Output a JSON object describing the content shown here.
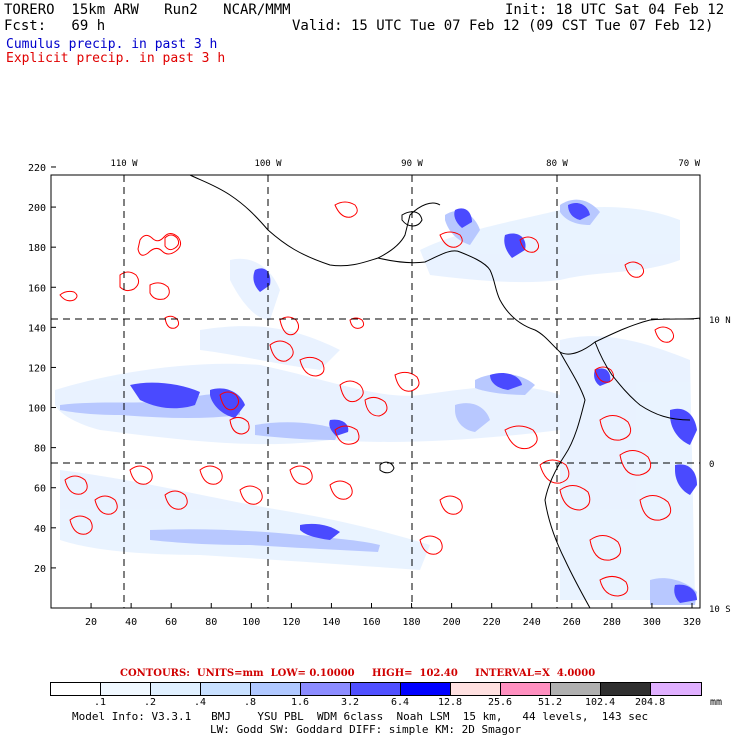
{
  "header": {
    "model": "TORERO  15km ARW   Run2   NCAR/MMM",
    "init": "Init: 18 UTC Sat 04 Feb 12",
    "fcst": "Fcst:   69 h",
    "valid": "Valid: 15 UTC Tue 07 Feb 12 (09 CST Tue 07 Feb 12)",
    "cumulus": "Cumulus precip. in past 3 h",
    "explicit": "Explicit precip. in past 3 h"
  },
  "map": {
    "lon_labels": [
      "110 W",
      "100 W",
      "90 W",
      "80 W",
      "70 W"
    ],
    "lat_labels": [
      "10 N",
      "0",
      "10 S"
    ],
    "x_ticks": [
      "20",
      "40",
      "60",
      "80",
      "100",
      "120",
      "140",
      "160",
      "180",
      "200",
      "220",
      "240",
      "260",
      "280",
      "300",
      "320"
    ],
    "y_ticks": [
      "220",
      "200",
      "180",
      "160",
      "140",
      "120",
      "100",
      "80",
      "60",
      "40",
      "20"
    ],
    "land_color": "#000000",
    "cumulus_color": "#3c3cff",
    "explicit_color": "#ff0000"
  },
  "contour_info": {
    "label": "CONTOURS:  UNITS=mm  LOW= 0.10000     HIGH=  102.40     INTERVAL=X  4.0000"
  },
  "colorbar": {
    "colors": [
      "#ffffff",
      "#f0f8ff",
      "#e0f0ff",
      "#c8e0ff",
      "#b0c8ff",
      "#8c8cff",
      "#5050ff",
      "#0000ff",
      "#ffe0e0",
      "#ff90c0",
      "#b0b0b0",
      "#303030",
      "#e0b0ff"
    ],
    "labels": [
      ".1",
      ".2",
      ".4",
      ".8",
      "1.6",
      "3.2",
      "6.4",
      "12.8",
      "25.6",
      "51.2",
      "102.4",
      "204.8"
    ],
    "unit": "mm"
  },
  "footer": {
    "line1": "Model Info: V3.3.1   BMJ    YSU PBL  WDM 6class  Noah LSM  15 km,   44 levels,  143 sec",
    "line2": "LW: Godd SW: Goddard DIFF: simple KM: 2D Smagor"
  }
}
